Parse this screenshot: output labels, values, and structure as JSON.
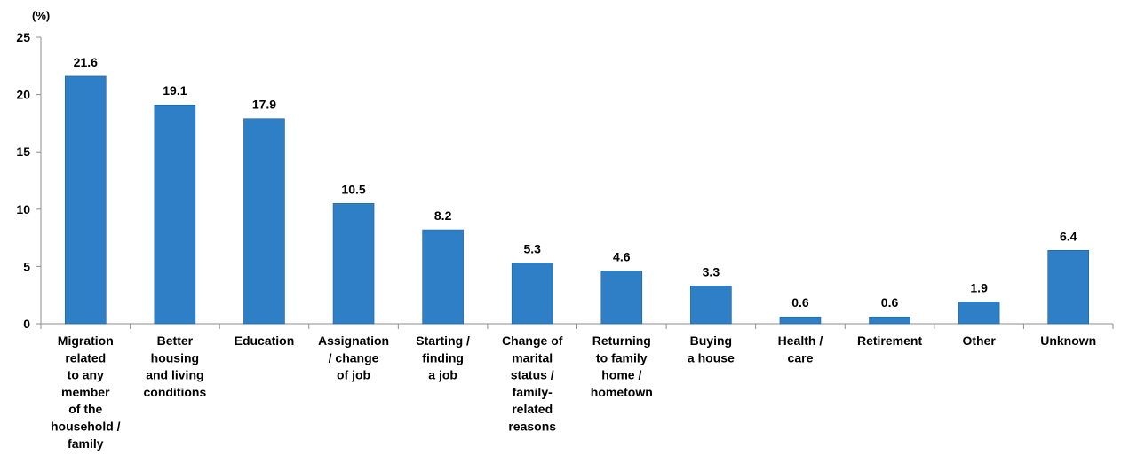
{
  "chart_data": {
    "type": "bar",
    "y_unit_label": "(%)",
    "title": "",
    "xlabel": "",
    "ylabel": "",
    "ylim": [
      0,
      25
    ],
    "y_ticks": [
      0,
      5,
      10,
      15,
      20,
      25
    ],
    "grid": false,
    "legend": "none",
    "bar_color": "#2e7fc6",
    "categories": [
      "Migration related to any member of the household / family",
      "Better housing and living conditions",
      "Education",
      "Assignation / change of job",
      "Starting / finding a job",
      "Change of marital status / family-related reasons",
      "Returning to family home / hometown",
      "Buying a house",
      "Health / care",
      "Retirement",
      "Other",
      "Unknown"
    ],
    "category_label_lines": [
      [
        "Migration",
        "related",
        "to any",
        "member",
        "of the",
        "household /",
        "family"
      ],
      [
        "Better",
        "housing",
        "and living",
        "conditions"
      ],
      [
        "Education"
      ],
      [
        "Assignation",
        "/ change",
        "of job"
      ],
      [
        "Starting /",
        "finding",
        "a job"
      ],
      [
        "Change of",
        "marital",
        "status /",
        "family-",
        "related",
        "reasons"
      ],
      [
        "Returning",
        "to family",
        "home /",
        "hometown"
      ],
      [
        "Buying",
        "a house"
      ],
      [
        "Health /",
        "care"
      ],
      [
        "Retirement"
      ],
      [
        "Other"
      ],
      [
        "Unknown"
      ]
    ],
    "values": [
      21.6,
      19.1,
      17.9,
      10.5,
      8.2,
      5.3,
      4.6,
      3.3,
      0.6,
      0.6,
      1.9,
      6.4
    ],
    "value_labels": [
      "21.6",
      "19.1",
      "17.9",
      "10.5",
      "8.2",
      "5.3",
      "4.6",
      "3.3",
      "0.6",
      "0.6",
      "1.9",
      "6.4"
    ]
  }
}
